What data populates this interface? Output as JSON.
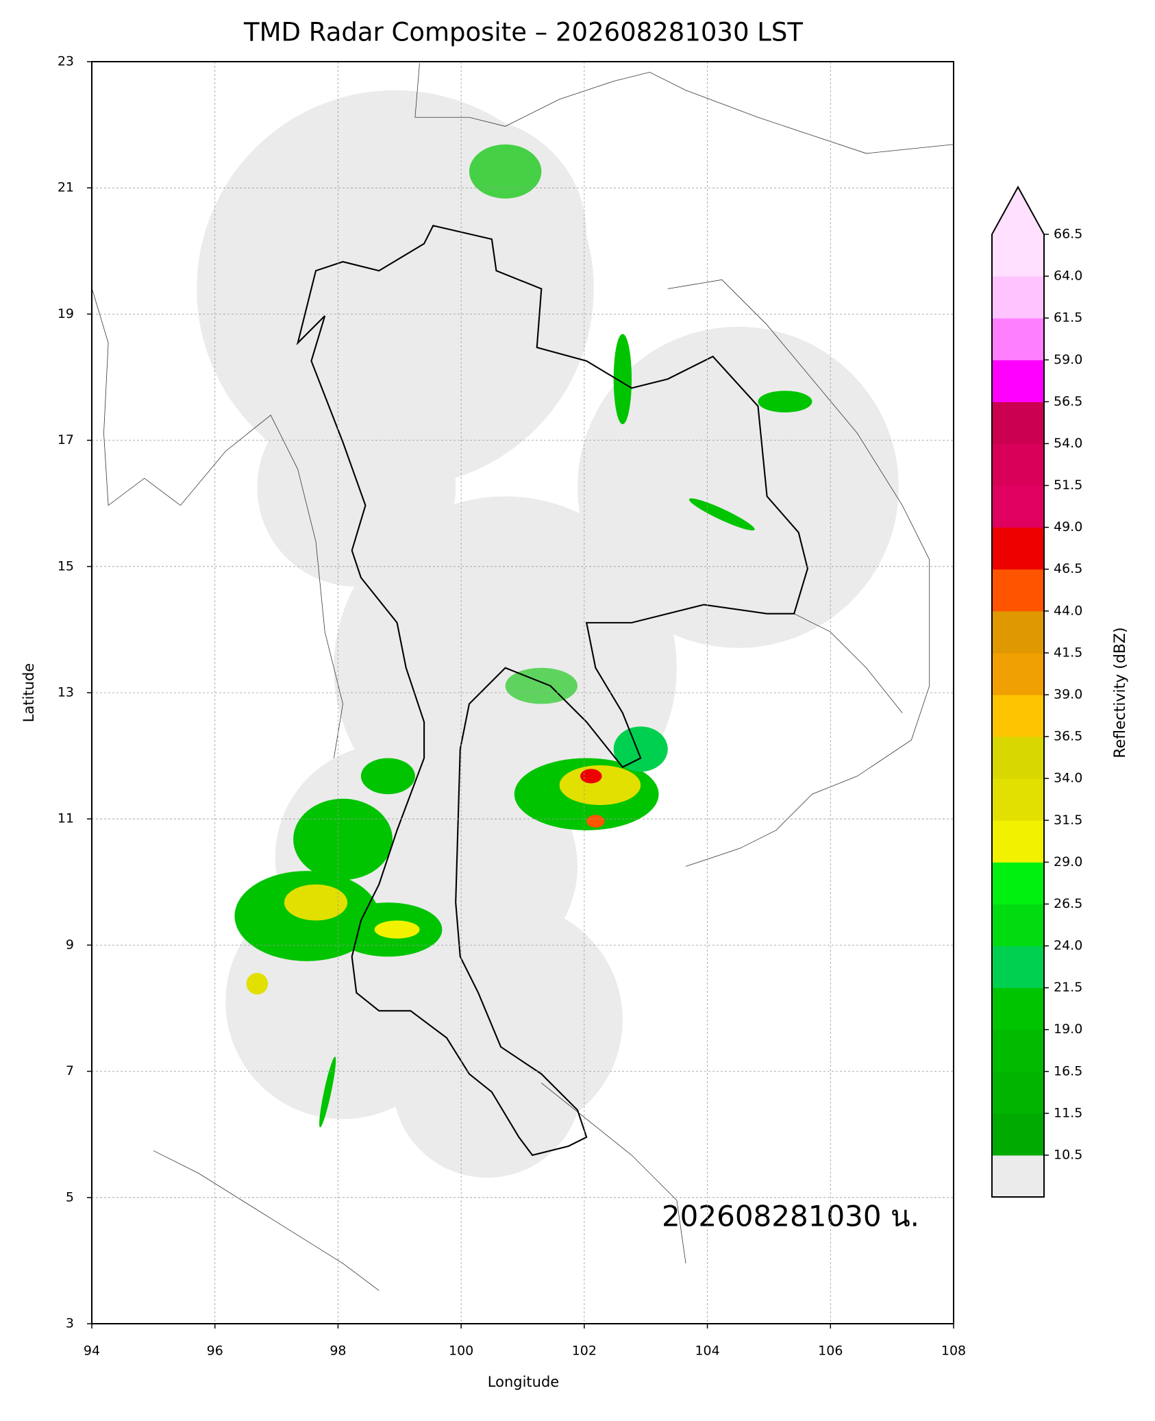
{
  "chart_data": {
    "type": "radar-map",
    "title": "TMD Radar Composite – 202608281030 LST",
    "x_label": "Longitude",
    "y_label": "Latitude",
    "annotation": "202608281030 น.",
    "xlim": [
      94,
      108
    ],
    "xticks": [
      94,
      96,
      98,
      100,
      102,
      104,
      106,
      108
    ],
    "ylim": [
      3,
      23
    ],
    "yticks": [
      3,
      5,
      7,
      9,
      11,
      13,
      15,
      17,
      19,
      21,
      23
    ],
    "grid": true,
    "colorbar": {
      "label": "Reflectivity (dBZ)",
      "ticks": [
        10.5,
        11.5,
        16.5,
        {
          "value": 19,
          "label": "19.0"
        },
        21.5,
        {
          "value": 24,
          "label": "24.0"
        },
        26.5,
        {
          "value": 29,
          "label": "29.0"
        },
        31.5,
        {
          "value": 34,
          "label": "34.0"
        },
        36.5,
        {
          "value": 39,
          "label": "39.0"
        },
        41.5,
        {
          "value": 44,
          "label": "44.0"
        },
        46.5,
        {
          "value": 49,
          "label": "49.0"
        },
        51.5,
        {
          "value": 54,
          "label": "54.0"
        },
        56.5,
        {
          "value": 59,
          "label": "59.0"
        },
        61.5,
        {
          "value": 64,
          "label": "64.0"
        },
        66.5
      ],
      "colors": [
        "#00aa00",
        "#00b400",
        "#00bb00",
        "#00c400",
        "#00d050",
        "#00dc10",
        "#00f010",
        "#f2f200",
        "#e2e000",
        "#d8d800",
        "#ffc400",
        "#f0a000",
        "#e09800",
        "#ff5500",
        "#ee0000",
        "#e00060",
        "#d80058",
        "#cc0050",
        "#ff00ff",
        "#ff80ff",
        "#ffc4ff",
        "#ffe0ff"
      ],
      "under_color": "#ebebeb",
      "over_color": "#ffe0ff"
    }
  }
}
